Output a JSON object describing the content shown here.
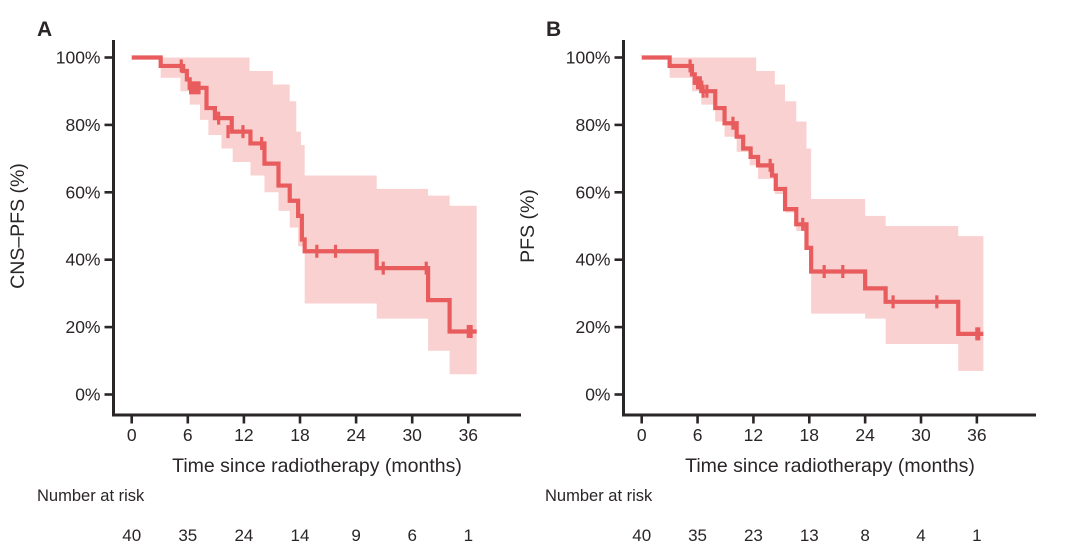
{
  "figure": {
    "background": "#ffffff",
    "colors": {
      "curve": "#e85c5e",
      "ci_band": "#fad1d1",
      "axis": "#2a2526",
      "text": "#2a2526"
    },
    "x_axis_label": "Time since radiotherapy (months)",
    "number_at_risk_label": "Number at risk"
  },
  "chart_data": [
    {
      "type": "line",
      "subtype": "kaplan-meier-step-curve",
      "panel_label": "A",
      "xlabel": "Time since radiotherapy (months)",
      "ylabel": "CNS–PFS (%)",
      "x_ticks": [
        0,
        6,
        12,
        18,
        24,
        30,
        36
      ],
      "y_ticks": [
        {
          "value": 0,
          "label": "0%"
        },
        {
          "value": 20,
          "label": "20%"
        },
        {
          "value": 40,
          "label": "40%"
        },
        {
          "value": 60,
          "label": "60%"
        },
        {
          "value": 80,
          "label": "80%"
        },
        {
          "value": 100,
          "label": "100%"
        }
      ],
      "xlim": [
        0,
        38
      ],
      "ylim": [
        0,
        105
      ],
      "grid": false,
      "legend": "none",
      "series": [
        {
          "name": "CNS-PFS",
          "km_steps": [
            [
              0,
              100
            ],
            [
              3.1,
              97.5
            ],
            [
              5.5,
              96
            ],
            [
              5.9,
              93.5
            ],
            [
              6.2,
              91
            ],
            [
              8.0,
              85
            ],
            [
              8.9,
              82
            ],
            [
              10.7,
              78
            ],
            [
              12.7,
              74.5
            ],
            [
              14.2,
              68.5
            ],
            [
              15.7,
              62
            ],
            [
              16.9,
              57.5
            ],
            [
              17.8,
              53
            ],
            [
              18.2,
              46
            ],
            [
              18.5,
              42.5
            ],
            [
              26.2,
              37.5
            ],
            [
              31.7,
              28
            ],
            [
              34.0,
              18.7
            ]
          ],
          "end_time": 36.9,
          "censor_marks": [
            [
              5.3,
              97.5
            ],
            [
              6.3,
              91
            ],
            [
              6.6,
              91
            ],
            [
              6.9,
              91
            ],
            [
              7.2,
              91
            ],
            [
              9.3,
              82
            ],
            [
              10.3,
              78
            ],
            [
              11.9,
              78
            ],
            [
              13.9,
              74.5
            ],
            [
              19.8,
              42.5
            ],
            [
              21.8,
              42.5
            ],
            [
              26.9,
              37.5
            ],
            [
              31.5,
              37.5
            ],
            [
              36.0,
              18.7
            ],
            [
              36.3,
              18.7
            ]
          ],
          "ci_upper": [
            [
              3.1,
              100
            ],
            [
              12.6,
              96
            ],
            [
              15.1,
              92
            ],
            [
              16.9,
              87
            ],
            [
              17.6,
              78
            ],
            [
              18.1,
              74
            ],
            [
              18.5,
              65
            ],
            [
              26.2,
              61
            ],
            [
              31.7,
              59
            ],
            [
              34.0,
              56
            ]
          ],
          "ci_lower": [
            [
              3.1,
              94
            ],
            [
              5.2,
              90
            ],
            [
              6.2,
              86
            ],
            [
              7.3,
              81.5
            ],
            [
              8.2,
              77
            ],
            [
              9.6,
              73
            ],
            [
              10.8,
              69
            ],
            [
              12.7,
              65
            ],
            [
              14.2,
              60
            ],
            [
              15.7,
              54.5
            ],
            [
              16.9,
              49.5
            ],
            [
              17.8,
              44
            ],
            [
              18.5,
              27
            ],
            [
              26.2,
              22.5
            ],
            [
              31.7,
              13
            ],
            [
              34.0,
              6
            ]
          ]
        }
      ],
      "number_at_risk": {
        "times": [
          0,
          6,
          12,
          18,
          24,
          30,
          36
        ],
        "values": [
          40,
          35,
          24,
          14,
          9,
          6,
          1
        ]
      }
    },
    {
      "type": "line",
      "subtype": "kaplan-meier-step-curve",
      "panel_label": "B",
      "xlabel": "Time since radiotherapy (months)",
      "ylabel": "PFS (%)",
      "x_ticks": [
        0,
        6,
        12,
        18,
        24,
        30,
        36
      ],
      "y_ticks": [
        {
          "value": 0,
          "label": "0%"
        },
        {
          "value": 20,
          "label": "20%"
        },
        {
          "value": 40,
          "label": "40%"
        },
        {
          "value": 60,
          "label": "60%"
        },
        {
          "value": 80,
          "label": "80%"
        },
        {
          "value": 100,
          "label": "100%"
        }
      ],
      "xlim": [
        0,
        38
      ],
      "ylim": [
        0,
        105
      ],
      "grid": false,
      "legend": "none",
      "series": [
        {
          "name": "PFS",
          "km_steps": [
            [
              0,
              100
            ],
            [
              3.0,
              97.5
            ],
            [
              5.4,
              95
            ],
            [
              5.7,
              92.5
            ],
            [
              6.4,
              90
            ],
            [
              7.9,
              85
            ],
            [
              8.9,
              80.5
            ],
            [
              10.2,
              76.5
            ],
            [
              10.9,
              73
            ],
            [
              11.7,
              70.5
            ],
            [
              12.5,
              68
            ],
            [
              14.0,
              65
            ],
            [
              14.4,
              61
            ],
            [
              15.4,
              55
            ],
            [
              16.6,
              50.5
            ],
            [
              17.7,
              43.5
            ],
            [
              18.2,
              36.5
            ],
            [
              24.0,
              31.5
            ],
            [
              26.2,
              27.5
            ],
            [
              34.0,
              18
            ]
          ],
          "end_time": 36.7,
          "censor_marks": [
            [
              5.2,
              97.5
            ],
            [
              6.0,
              92.5
            ],
            [
              6.3,
              92.5
            ],
            [
              6.6,
              90
            ],
            [
              7.0,
              90
            ],
            [
              9.8,
              80.5
            ],
            [
              13.8,
              68
            ],
            [
              17.3,
              50.5
            ],
            [
              19.6,
              36.5
            ],
            [
              21.6,
              36.5
            ],
            [
              27.0,
              27.5
            ],
            [
              31.7,
              27.5
            ],
            [
              36.0,
              18
            ],
            [
              36.2,
              18
            ]
          ],
          "ci_upper": [
            [
              3.0,
              100
            ],
            [
              12.3,
              96
            ],
            [
              14.3,
              92
            ],
            [
              15.4,
              87
            ],
            [
              16.6,
              81
            ],
            [
              17.7,
              73
            ],
            [
              18.2,
              58
            ],
            [
              24.0,
              53
            ],
            [
              26.2,
              50
            ],
            [
              34.0,
              47
            ]
          ],
          "ci_lower": [
            [
              3.0,
              94
            ],
            [
              5.4,
              90
            ],
            [
              6.4,
              86
            ],
            [
              7.9,
              81
            ],
            [
              8.9,
              76.5
            ],
            [
              10.2,
              72
            ],
            [
              11.6,
              68
            ],
            [
              12.5,
              64
            ],
            [
              14.3,
              59.5
            ],
            [
              15.4,
              54
            ],
            [
              16.6,
              48.5
            ],
            [
              17.7,
              43
            ],
            [
              18.2,
              24
            ],
            [
              24.0,
              22.5
            ],
            [
              26.2,
              15
            ],
            [
              34.0,
              7
            ]
          ]
        }
      ],
      "number_at_risk": {
        "times": [
          0,
          6,
          12,
          18,
          24,
          30,
          36
        ],
        "values": [
          40,
          35,
          23,
          13,
          8,
          4,
          1
        ]
      }
    }
  ]
}
